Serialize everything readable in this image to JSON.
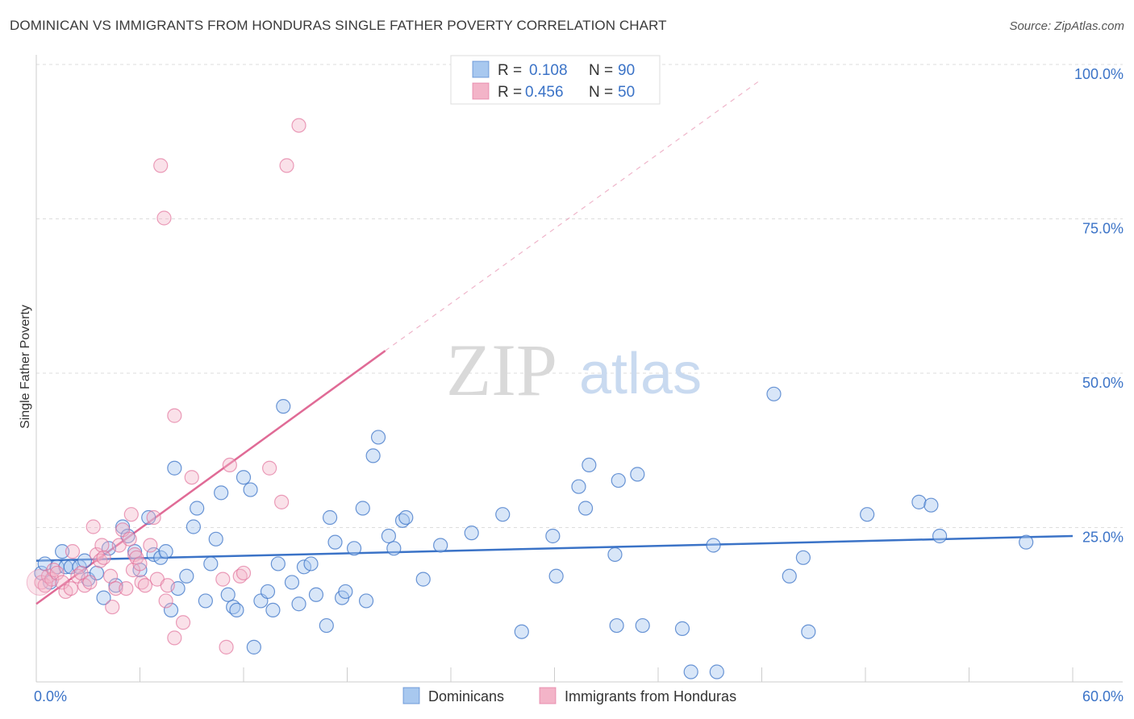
{
  "title": "DOMINICAN VS IMMIGRANTS FROM HONDURAS SINGLE FATHER POVERTY CORRELATION CHART",
  "source": "Source: ZipAtlas.com",
  "watermark": {
    "zip": "ZIP",
    "atlas": "atlas"
  },
  "colors": {
    "blue": "#3b73c7",
    "blue_fill": "#a8c8ef",
    "pink": "#e06b96",
    "pink_fill": "#f3b4c8",
    "grid": "#dddddd"
  },
  "legend": {
    "r_label": "R =",
    "n_label": "N =",
    "series": [
      {
        "r": "0.108",
        "n": "90"
      },
      {
        "r": "0.456",
        "n": "50"
      }
    ]
  },
  "chart_data": {
    "type": "scatter",
    "title": "DOMINICAN VS IMMIGRANTS FROM HONDURAS SINGLE FATHER POVERTY CORRELATION CHART",
    "xlabel": "",
    "ylabel": "Single Father Poverty",
    "xlim": [
      0,
      60
    ],
    "ylim": [
      0,
      105
    ],
    "x_tick_labels": [
      "0.0%",
      "60.0%"
    ],
    "y_ticks": [
      25,
      50,
      75,
      100
    ],
    "y_tick_labels": [
      "25.0%",
      "50.0%",
      "75.0%",
      "100.0%"
    ],
    "grid": true,
    "legend_position": "top-center",
    "series": [
      {
        "name": "Dominicans",
        "r": 0.108,
        "n": 90,
        "trend": {
          "x": [
            0,
            60
          ],
          "y": [
            19.5,
            23.5
          ]
        },
        "points": [
          [
            0.3,
            17.5
          ],
          [
            0.5,
            19
          ],
          [
            0.8,
            16
          ],
          [
            1.2,
            18.5
          ],
          [
            1.5,
            21
          ],
          [
            1.7,
            18.5
          ],
          [
            2.0,
            18.5
          ],
          [
            2.5,
            18.5
          ],
          [
            2.8,
            19.5
          ],
          [
            3.0,
            16.5
          ],
          [
            3.5,
            17.5
          ],
          [
            3.9,
            13.5
          ],
          [
            4.2,
            21.5
          ],
          [
            4.6,
            15.5
          ],
          [
            5.0,
            25
          ],
          [
            5.3,
            23.5
          ],
          [
            5.7,
            21
          ],
          [
            6.0,
            18
          ],
          [
            6.5,
            26.5
          ],
          [
            6.8,
            20.5
          ],
          [
            7.2,
            20
          ],
          [
            7.5,
            21
          ],
          [
            7.8,
            11.5
          ],
          [
            8.0,
            34.5
          ],
          [
            8.2,
            15
          ],
          [
            8.7,
            17
          ],
          [
            9.1,
            25
          ],
          [
            9.3,
            28
          ],
          [
            9.8,
            13
          ],
          [
            10.1,
            19
          ],
          [
            10.4,
            23
          ],
          [
            10.7,
            30.5
          ],
          [
            11.1,
            14
          ],
          [
            11.4,
            12
          ],
          [
            11.6,
            11.5
          ],
          [
            12.0,
            33
          ],
          [
            12.4,
            31
          ],
          [
            12.6,
            5.5
          ],
          [
            13.0,
            13
          ],
          [
            13.4,
            14.5
          ],
          [
            13.7,
            11.5
          ],
          [
            14.0,
            19
          ],
          [
            14.3,
            44.5
          ],
          [
            14.8,
            16
          ],
          [
            15.2,
            12.5
          ],
          [
            15.5,
            18.5
          ],
          [
            15.9,
            19
          ],
          [
            16.2,
            14
          ],
          [
            16.8,
            9
          ],
          [
            17.0,
            26.5
          ],
          [
            17.3,
            22.5
          ],
          [
            17.7,
            13.5
          ],
          [
            17.9,
            14.5
          ],
          [
            18.4,
            21.5
          ],
          [
            18.9,
            28
          ],
          [
            19.1,
            13
          ],
          [
            19.5,
            36.5
          ],
          [
            19.8,
            39.5
          ],
          [
            20.4,
            23.5
          ],
          [
            20.7,
            21.5
          ],
          [
            21.2,
            26
          ],
          [
            21.4,
            26.5
          ],
          [
            22.4,
            16.5
          ],
          [
            23.4,
            22
          ],
          [
            25.2,
            24
          ],
          [
            27.0,
            27
          ],
          [
            28.1,
            8
          ],
          [
            29.9,
            23.5
          ],
          [
            30.1,
            17
          ],
          [
            31.4,
            31.5
          ],
          [
            31.8,
            28
          ],
          [
            32.0,
            35
          ],
          [
            33.5,
            20.5
          ],
          [
            33.6,
            9
          ],
          [
            33.7,
            32.5
          ],
          [
            34.8,
            33.5
          ],
          [
            35.1,
            9
          ],
          [
            37.4,
            8.5
          ],
          [
            37.9,
            1.5
          ],
          [
            39.2,
            22
          ],
          [
            39.4,
            1.5
          ],
          [
            42.7,
            46.5
          ],
          [
            43.6,
            17
          ],
          [
            44.4,
            20
          ],
          [
            44.7,
            8
          ],
          [
            48.1,
            27
          ],
          [
            51.1,
            29
          ],
          [
            51.8,
            28.5
          ],
          [
            52.3,
            23.5
          ],
          [
            57.3,
            22.5
          ]
        ]
      },
      {
        "name": "Immigrants from Honduras",
        "r": 0.456,
        "n": 50,
        "trend": {
          "x": [
            0,
            20.2
          ],
          "y": [
            12.5,
            53.5
          ]
        },
        "trend_dashed": {
          "x": [
            20.2,
            42.0
          ],
          "y": [
            53.5,
            97.5
          ]
        },
        "points": [
          [
            0.3,
            16
          ],
          [
            0.5,
            15.5
          ],
          [
            0.7,
            17
          ],
          [
            0.9,
            16.5
          ],
          [
            1.0,
            18
          ],
          [
            1.2,
            17.5
          ],
          [
            1.5,
            16
          ],
          [
            1.7,
            14.5
          ],
          [
            2.0,
            15
          ],
          [
            2.1,
            21
          ],
          [
            2.4,
            17
          ],
          [
            2.6,
            17.5
          ],
          [
            2.8,
            15.5
          ],
          [
            3.1,
            16
          ],
          [
            3.3,
            25
          ],
          [
            3.5,
            20.5
          ],
          [
            3.7,
            19.5
          ],
          [
            3.8,
            22
          ],
          [
            3.9,
            20
          ],
          [
            4.3,
            17
          ],
          [
            4.4,
            12
          ],
          [
            4.6,
            15
          ],
          [
            4.8,
            22
          ],
          [
            5.0,
            24.5
          ],
          [
            5.2,
            15
          ],
          [
            5.4,
            23
          ],
          [
            5.5,
            27
          ],
          [
            5.6,
            18
          ],
          [
            5.7,
            20.5
          ],
          [
            5.8,
            20
          ],
          [
            6.0,
            19
          ],
          [
            6.1,
            16
          ],
          [
            6.3,
            15.5
          ],
          [
            6.6,
            22
          ],
          [
            6.8,
            26.5
          ],
          [
            7.0,
            16.5
          ],
          [
            7.2,
            83.5
          ],
          [
            7.4,
            75
          ],
          [
            7.5,
            13
          ],
          [
            7.6,
            15.5
          ],
          [
            8.0,
            7
          ],
          [
            8.0,
            43
          ],
          [
            8.5,
            9.5
          ],
          [
            9.0,
            33
          ],
          [
            11.0,
            5.5
          ],
          [
            11.2,
            35
          ],
          [
            11.8,
            17
          ],
          [
            13.5,
            34.5
          ],
          [
            14.2,
            29
          ],
          [
            14.5,
            83.5
          ]
        ],
        "extra_points": [
          [
            15.2,
            90
          ],
          [
            10.8,
            16.5
          ],
          [
            12.0,
            17.5
          ]
        ]
      }
    ]
  },
  "bottom_legend": [
    "Dominicans",
    "Immigrants from Honduras"
  ]
}
